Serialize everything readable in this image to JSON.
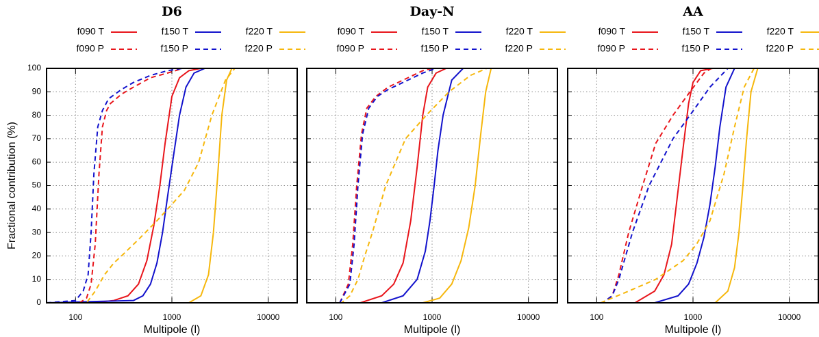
{
  "chart_data": [
    {
      "type": "line",
      "title": "D6",
      "xlabel": "Multipole (l)",
      "ylabel": "Fractional contribution (%)",
      "xscale": "log",
      "xlim": [
        50,
        20000
      ],
      "ylim": [
        0,
        100
      ],
      "xticks": [
        100,
        1000,
        10000
      ],
      "yticks": [
        0,
        10,
        20,
        30,
        40,
        50,
        60,
        70,
        80,
        90,
        100
      ],
      "grid": true,
      "series": [
        {
          "name": "f090 T",
          "color": "#e8151b",
          "linestyle": "solid",
          "x": [
            50,
            150,
            250,
            350,
            450,
            550,
            650,
            750,
            850,
            1000,
            1200,
            1500,
            2000,
            20000
          ],
          "values": [
            0,
            0,
            1,
            3,
            8,
            18,
            33,
            50,
            68,
            88,
            96,
            99,
            100,
            100
          ]
        },
        {
          "name": "f150 T",
          "color": "#1212cc",
          "linestyle": "solid",
          "x": [
            50,
            400,
            500,
            600,
            700,
            800,
            900,
            1000,
            1200,
            1400,
            1700,
            2200,
            20000
          ],
          "values": [
            0,
            1,
            3,
            8,
            17,
            30,
            45,
            58,
            80,
            92,
            98,
            100,
            100
          ]
        },
        {
          "name": "f220 T",
          "color": "#f6b70c",
          "linestyle": "solid",
          "x": [
            50,
            1500,
            2000,
            2400,
            2700,
            3000,
            3300,
            3700,
            4200,
            20000
          ],
          "values": [
            0,
            0,
            3,
            12,
            30,
            55,
            80,
            95,
            100,
            100
          ]
        },
        {
          "name": "f090 P",
          "color": "#e8151b",
          "linestyle": "dashed",
          "x": [
            50,
            110,
            130,
            145,
            160,
            175,
            190,
            210,
            230,
            300,
            400,
            600,
            900,
            1300,
            20000
          ],
          "values": [
            0,
            0,
            2,
            8,
            25,
            55,
            75,
            82,
            85,
            89,
            92,
            96,
            98,
            100,
            100
          ]
        },
        {
          "name": "f150 P",
          "color": "#1212cc",
          "linestyle": "dashed",
          "x": [
            50,
            100,
            120,
            135,
            145,
            155,
            170,
            190,
            220,
            300,
            400,
            600,
            900,
            1300,
            20000
          ],
          "values": [
            0,
            1,
            5,
            12,
            30,
            55,
            75,
            82,
            87,
            91,
            94,
            97,
            99,
            100,
            100
          ]
        },
        {
          "name": "f220 P",
          "color": "#f6b70c",
          "linestyle": "dashed",
          "x": [
            50,
            130,
            160,
            200,
            250,
            300,
            450,
            700,
            1000,
            1350,
            1900,
            2600,
            3600,
            4500,
            20000
          ],
          "values": [
            0,
            0,
            5,
            12,
            17,
            20,
            27,
            35,
            42,
            48,
            60,
            80,
            95,
            100,
            100
          ]
        }
      ]
    },
    {
      "type": "line",
      "title": "Day-N",
      "xlabel": "Multipole (l)",
      "xscale": "log",
      "xlim": [
        50,
        20000
      ],
      "ylim": [
        0,
        100
      ],
      "xticks": [
        100,
        1000,
        10000
      ],
      "yticks": [
        0,
        10,
        20,
        30,
        40,
        50,
        60,
        70,
        80,
        90,
        100
      ],
      "grid": true,
      "series": [
        {
          "name": "f090 T",
          "color": "#e8151b",
          "linestyle": "solid",
          "x": [
            50,
            180,
            300,
            400,
            500,
            600,
            700,
            800,
            900,
            1100,
            1400,
            20000
          ],
          "values": [
            0,
            0,
            3,
            8,
            17,
            35,
            58,
            80,
            92,
            98,
            100,
            100
          ]
        },
        {
          "name": "f150 T",
          "color": "#1212cc",
          "linestyle": "solid",
          "x": [
            50,
            300,
            500,
            700,
            850,
            950,
            1050,
            1150,
            1300,
            1600,
            2100,
            20000
          ],
          "values": [
            0,
            0,
            3,
            10,
            22,
            35,
            50,
            65,
            80,
            95,
            100,
            100
          ]
        },
        {
          "name": "f220 T",
          "color": "#f6b70c",
          "linestyle": "solid",
          "x": [
            50,
            800,
            1200,
            1600,
            2000,
            2400,
            2800,
            3200,
            3600,
            4100,
            20000
          ],
          "values": [
            0,
            0,
            2,
            8,
            18,
            32,
            50,
            72,
            90,
            100,
            100
          ]
        },
        {
          "name": "f090 P",
          "color": "#e8151b",
          "linestyle": "dashed",
          "x": [
            50,
            110,
            135,
            150,
            165,
            185,
            210,
            260,
            350,
            500,
            800,
            1000,
            20000
          ],
          "values": [
            0,
            0,
            8,
            25,
            50,
            72,
            83,
            88,
            92,
            95,
            99,
            100,
            100
          ]
        },
        {
          "name": "f150 P",
          "color": "#1212cc",
          "linestyle": "dashed",
          "x": [
            50,
            110,
            140,
            155,
            170,
            190,
            220,
            270,
            350,
            500,
            800,
            1100,
            20000
          ],
          "values": [
            0,
            0,
            8,
            25,
            50,
            72,
            83,
            88,
            91,
            94,
            98,
            100,
            100
          ]
        },
        {
          "name": "f220 P",
          "color": "#f6b70c",
          "linestyle": "dashed",
          "x": [
            50,
            115,
            140,
            170,
            200,
            240,
            330,
            530,
            870,
            1500,
            2500,
            3700,
            20000
          ],
          "values": [
            0,
            0,
            3,
            10,
            20,
            30,
            50,
            70,
            80,
            90,
            97,
            100,
            100
          ]
        }
      ]
    },
    {
      "type": "line",
      "title": "AA",
      "xlabel": "Multipole (l)",
      "xscale": "log",
      "xlim": [
        50,
        20000
      ],
      "ylim": [
        0,
        100
      ],
      "xticks": [
        100,
        1000,
        10000
      ],
      "yticks": [
        0,
        10,
        20,
        30,
        40,
        50,
        60,
        70,
        80,
        90,
        100
      ],
      "grid": true,
      "series": [
        {
          "name": "f090 T",
          "color": "#e8151b",
          "linestyle": "solid",
          "x": [
            50,
            250,
            400,
            500,
            600,
            700,
            800,
            900,
            1000,
            1200,
            1600,
            20000
          ],
          "values": [
            0,
            0,
            5,
            12,
            25,
            48,
            68,
            85,
            94,
            99,
            100,
            100
          ]
        },
        {
          "name": "f150 T",
          "color": "#1212cc",
          "linestyle": "solid",
          "x": [
            50,
            400,
            700,
            900,
            1100,
            1300,
            1500,
            1700,
            1900,
            2200,
            2700,
            20000
          ],
          "values": [
            0,
            0,
            3,
            8,
            17,
            28,
            42,
            58,
            75,
            92,
            100,
            100
          ]
        },
        {
          "name": "f220 T",
          "color": "#f6b70c",
          "linestyle": "solid",
          "x": [
            50,
            1700,
            2300,
            2700,
            3000,
            3300,
            3600,
            4000,
            4700,
            20000
          ],
          "values": [
            0,
            0,
            5,
            15,
            30,
            50,
            70,
            90,
            100,
            100
          ]
        },
        {
          "name": "f090 P",
          "color": "#e8151b",
          "linestyle": "dashed",
          "x": [
            50,
            115,
            145,
            170,
            215,
            300,
            410,
            620,
            930,
            1300,
            1550,
            20000
          ],
          "values": [
            0,
            0,
            3,
            12,
            30,
            50,
            68,
            80,
            90,
            98,
            100,
            100
          ]
        },
        {
          "name": "f150 P",
          "color": "#1212cc",
          "linestyle": "dashed",
          "x": [
            50,
            115,
            145,
            170,
            235,
            350,
            620,
            930,
            1500,
            2300,
            20000
          ],
          "values": [
            0,
            0,
            3,
            10,
            30,
            50,
            70,
            80,
            92,
            100,
            100
          ]
        },
        {
          "name": "f220 P",
          "color": "#f6b70c",
          "linestyle": "dashed",
          "x": [
            50,
            110,
            215,
            410,
            790,
            1090,
            1500,
            2100,
            2700,
            3400,
            4300,
            20000
          ],
          "values": [
            0,
            0,
            5,
            10,
            18,
            25,
            35,
            55,
            75,
            92,
            100,
            100
          ]
        }
      ]
    }
  ]
}
